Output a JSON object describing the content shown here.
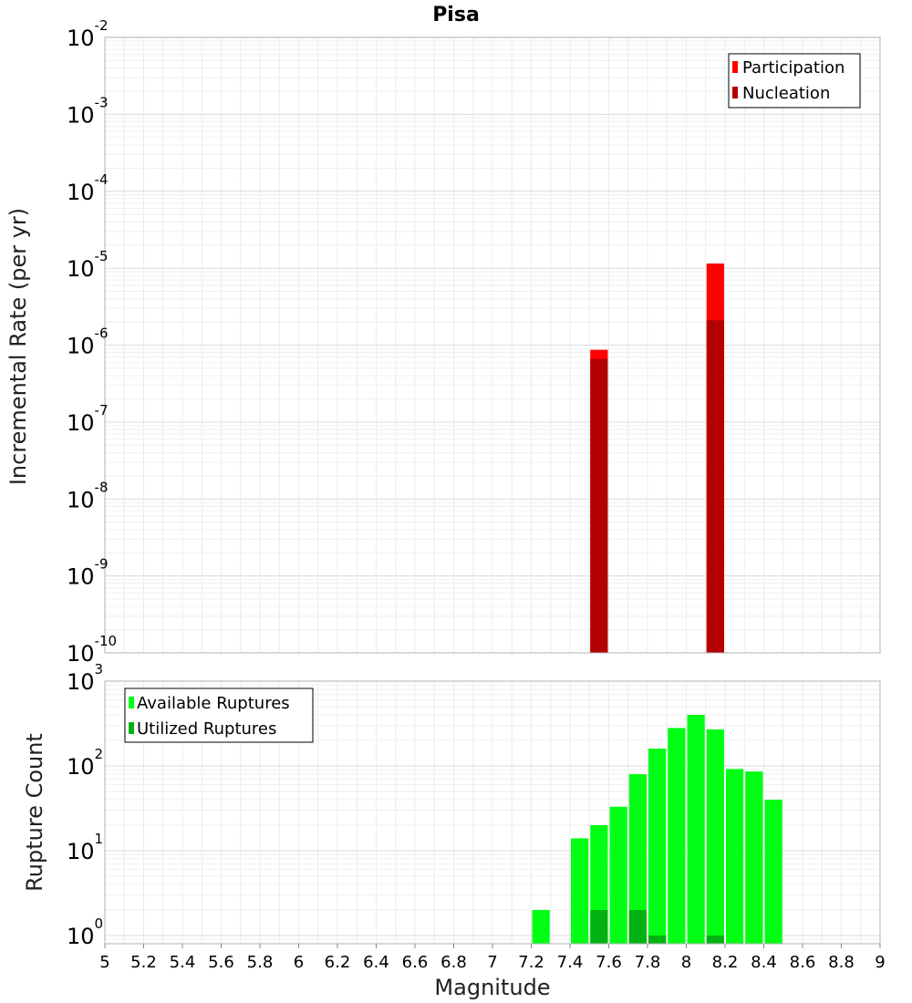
{
  "chart_data": [
    {
      "id": "rate",
      "type": "bar",
      "title": "Pisa",
      "ylabel": "Incremental Rate (per yr)",
      "xlabel": "",
      "yscale": "log",
      "ylim": [
        1e-10,
        0.01
      ],
      "xlim": [
        5,
        9
      ],
      "bar_width": 0.1,
      "y_ticks": [
        {
          "base": "10",
          "exp": "-10",
          "value": 1e-10
        },
        {
          "base": "10",
          "exp": "-9",
          "value": 1e-09
        },
        {
          "base": "10",
          "exp": "-8",
          "value": 1e-08
        },
        {
          "base": "10",
          "exp": "-7",
          "value": 1e-07
        },
        {
          "base": "10",
          "exp": "-6",
          "value": 1e-06
        },
        {
          "base": "10",
          "exp": "-5",
          "value": 1e-05
        },
        {
          "base": "10",
          "exp": "-4",
          "value": 0.0001
        },
        {
          "base": "10",
          "exp": "-3",
          "value": 0.001
        },
        {
          "base": "10",
          "exp": "-2",
          "value": 0.01
        }
      ],
      "series": [
        {
          "name": "Participation",
          "color": "#ff0000",
          "x": [
            7.55,
            8.15
          ],
          "values": [
            8.7e-07,
            1.15e-05
          ]
        },
        {
          "name": "Nucleation",
          "color": "#b30000",
          "x": [
            7.55,
            8.15
          ],
          "values": [
            6.6e-07,
            2.1e-06
          ]
        }
      ],
      "legend": "top-right",
      "grid": true
    },
    {
      "id": "count",
      "type": "bar",
      "title": "",
      "ylabel": "Rupture Count",
      "xlabel": "Magnitude",
      "yscale": "log",
      "ylim": [
        0.8,
        1000
      ],
      "xlim": [
        5,
        9
      ],
      "bar_width": 0.1,
      "y_ticks": [
        {
          "base": "10",
          "exp": "0",
          "value": 1
        },
        {
          "base": "10",
          "exp": "1",
          "value": 10
        },
        {
          "base": "10",
          "exp": "2",
          "value": 100
        },
        {
          "base": "10",
          "exp": "3",
          "value": 1000
        }
      ],
      "x_ticks": [
        "5",
        "5.2",
        "5.4",
        "5.6",
        "5.8",
        "6",
        "6.2",
        "6.4",
        "6.6",
        "6.8",
        "7",
        "7.2",
        "7.4",
        "7.6",
        "7.8",
        "8",
        "8.2",
        "8.4",
        "8.6",
        "8.8",
        "9"
      ],
      "series": [
        {
          "name": "Available Ruptures",
          "color": "#00ff14",
          "x": [
            7.25,
            7.45,
            7.55,
            7.65,
            7.75,
            7.85,
            7.95,
            8.05,
            8.15,
            8.25,
            8.35,
            8.45
          ],
          "values": [
            2,
            14,
            20,
            33,
            80,
            160,
            280,
            400,
            270,
            92,
            86,
            40
          ]
        },
        {
          "name": "Utilized Ruptures",
          "color": "#00b312",
          "x": [
            7.55,
            7.75,
            7.85,
            8.15
          ],
          "values": [
            2,
            2,
            1,
            1
          ]
        }
      ],
      "legend": "top-left",
      "grid": true
    }
  ]
}
